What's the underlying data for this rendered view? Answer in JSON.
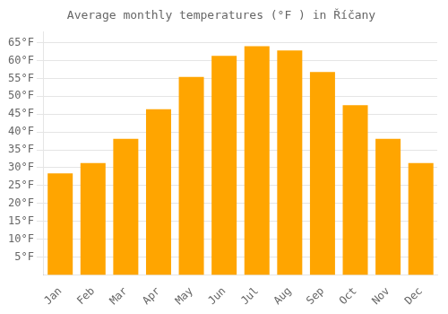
{
  "chart_data": {
    "type": "bar",
    "title": "Average monthly temperatures (°F ) in Říčany",
    "categories": [
      "Jan",
      "Feb",
      "Mar",
      "Apr",
      "May",
      "Jun",
      "Jul",
      "Aug",
      "Sep",
      "Oct",
      "Nov",
      "Dec"
    ],
    "values": [
      28.4,
      31.3,
      38.1,
      46.4,
      55.4,
      61.3,
      64.0,
      62.8,
      56.8,
      47.5,
      38.1,
      31.3
    ],
    "color": "#FFA500",
    "ylim": [
      0,
      68
    ],
    "yticks": [
      {
        "value": 5,
        "label": "5°F"
      },
      {
        "value": 10,
        "label": "10°F"
      },
      {
        "value": 15,
        "label": "15°F"
      },
      {
        "value": 20,
        "label": "20°F"
      },
      {
        "value": 25,
        "label": "25°F"
      },
      {
        "value": 30,
        "label": "30°F"
      },
      {
        "value": 35,
        "label": "35°F"
      },
      {
        "value": 40,
        "label": "40°F"
      },
      {
        "value": 45,
        "label": "45°F"
      },
      {
        "value": 50,
        "label": "50°F"
      },
      {
        "value": 55,
        "label": "55°F"
      },
      {
        "value": 60,
        "label": "60°F"
      },
      {
        "value": 65,
        "label": "65°F"
      }
    ],
    "grid": true
  }
}
